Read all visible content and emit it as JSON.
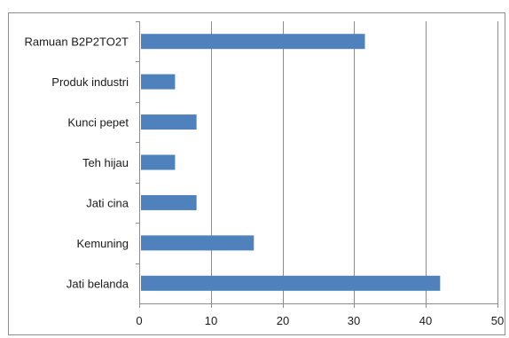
{
  "chart_data": {
    "type": "bar",
    "orientation": "horizontal",
    "categories": [
      "Ramuan B2P2TO2T",
      "Produk industri",
      "Kunci  pepet",
      "Teh hijau",
      "Jati cina",
      "Kemuning",
      "Jati belanda"
    ],
    "values": [
      31.5,
      5,
      8,
      5,
      8,
      16,
      42
    ],
    "xlim": [
      0,
      50
    ],
    "xticks": [
      "0",
      "10",
      "20",
      "30",
      "40",
      "50"
    ],
    "grid": true,
    "legend": "none",
    "bar_color": "#4f81bd",
    "grid_color": "#8c8c8c"
  }
}
